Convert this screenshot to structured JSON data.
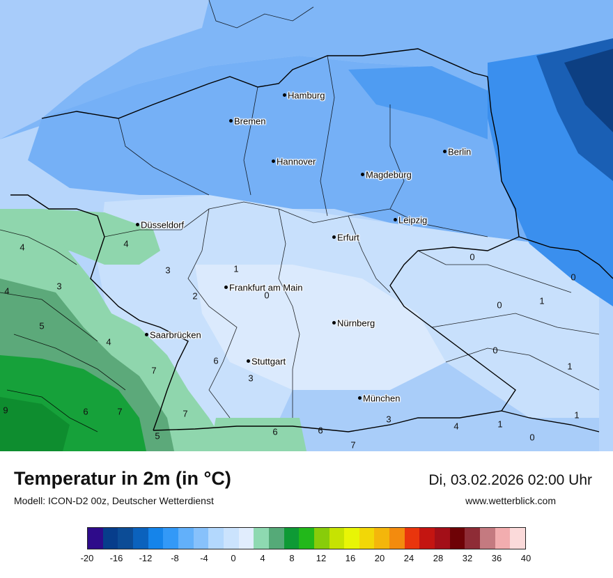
{
  "header": {
    "title": "Temperatur in 2m (in °C)",
    "model": "Modell: ICON-D2 00z, Deutscher Wetterdienst",
    "datetime": "Di, 03.02.2026 02:00 Uhr",
    "website": "www.wetterblick.com"
  },
  "cities": [
    {
      "name": "Hamburg"
    },
    {
      "name": "Bremen"
    },
    {
      "name": "Hannover"
    },
    {
      "name": "Berlin"
    },
    {
      "name": "Magdeburg"
    },
    {
      "name": "Leipzig"
    },
    {
      "name": "Düsseldorf"
    },
    {
      "name": "Erfurt"
    },
    {
      "name": "Frankfurt am Main"
    },
    {
      "name": "Nürnberg"
    },
    {
      "name": "Saarbrücken"
    },
    {
      "name": "Stuttgart"
    },
    {
      "name": "München"
    }
  ],
  "values": [
    "4",
    "4",
    "4",
    "3",
    "3",
    "1",
    "0",
    "2",
    "5",
    "4",
    "6",
    "7",
    "3",
    "6",
    "9",
    "7",
    "7",
    "5",
    "6",
    "6",
    "7",
    "3",
    "0",
    "0",
    "0",
    "0",
    "1",
    "1",
    "1",
    "0",
    "1",
    "4"
  ],
  "legend": {
    "ticks": [
      "-20",
      "-16",
      "-12",
      "-8",
      "-4",
      "0",
      "4",
      "8",
      "12",
      "16",
      "20",
      "24",
      "28",
      "32",
      "36",
      "40"
    ],
    "colors": [
      "#2e0b8a",
      "#073d8b",
      "#0c4c96",
      "#0b62bd",
      "#1584ea",
      "#3399f7",
      "#62b0fa",
      "#87c1fb",
      "#b3d8fd",
      "#cbe3fd",
      "#e1edfd",
      "#8ed9b1",
      "#55aa78",
      "#0e9a35",
      "#22b81a",
      "#88cc0a",
      "#c6e302",
      "#e8f506",
      "#f2d707",
      "#f4b60b",
      "#f38b0e",
      "#e9350d",
      "#c41511",
      "#a30f18",
      "#6e0206",
      "#8e2c36",
      "#c47a80",
      "#f2adaf",
      "#fbdada"
    ]
  }
}
